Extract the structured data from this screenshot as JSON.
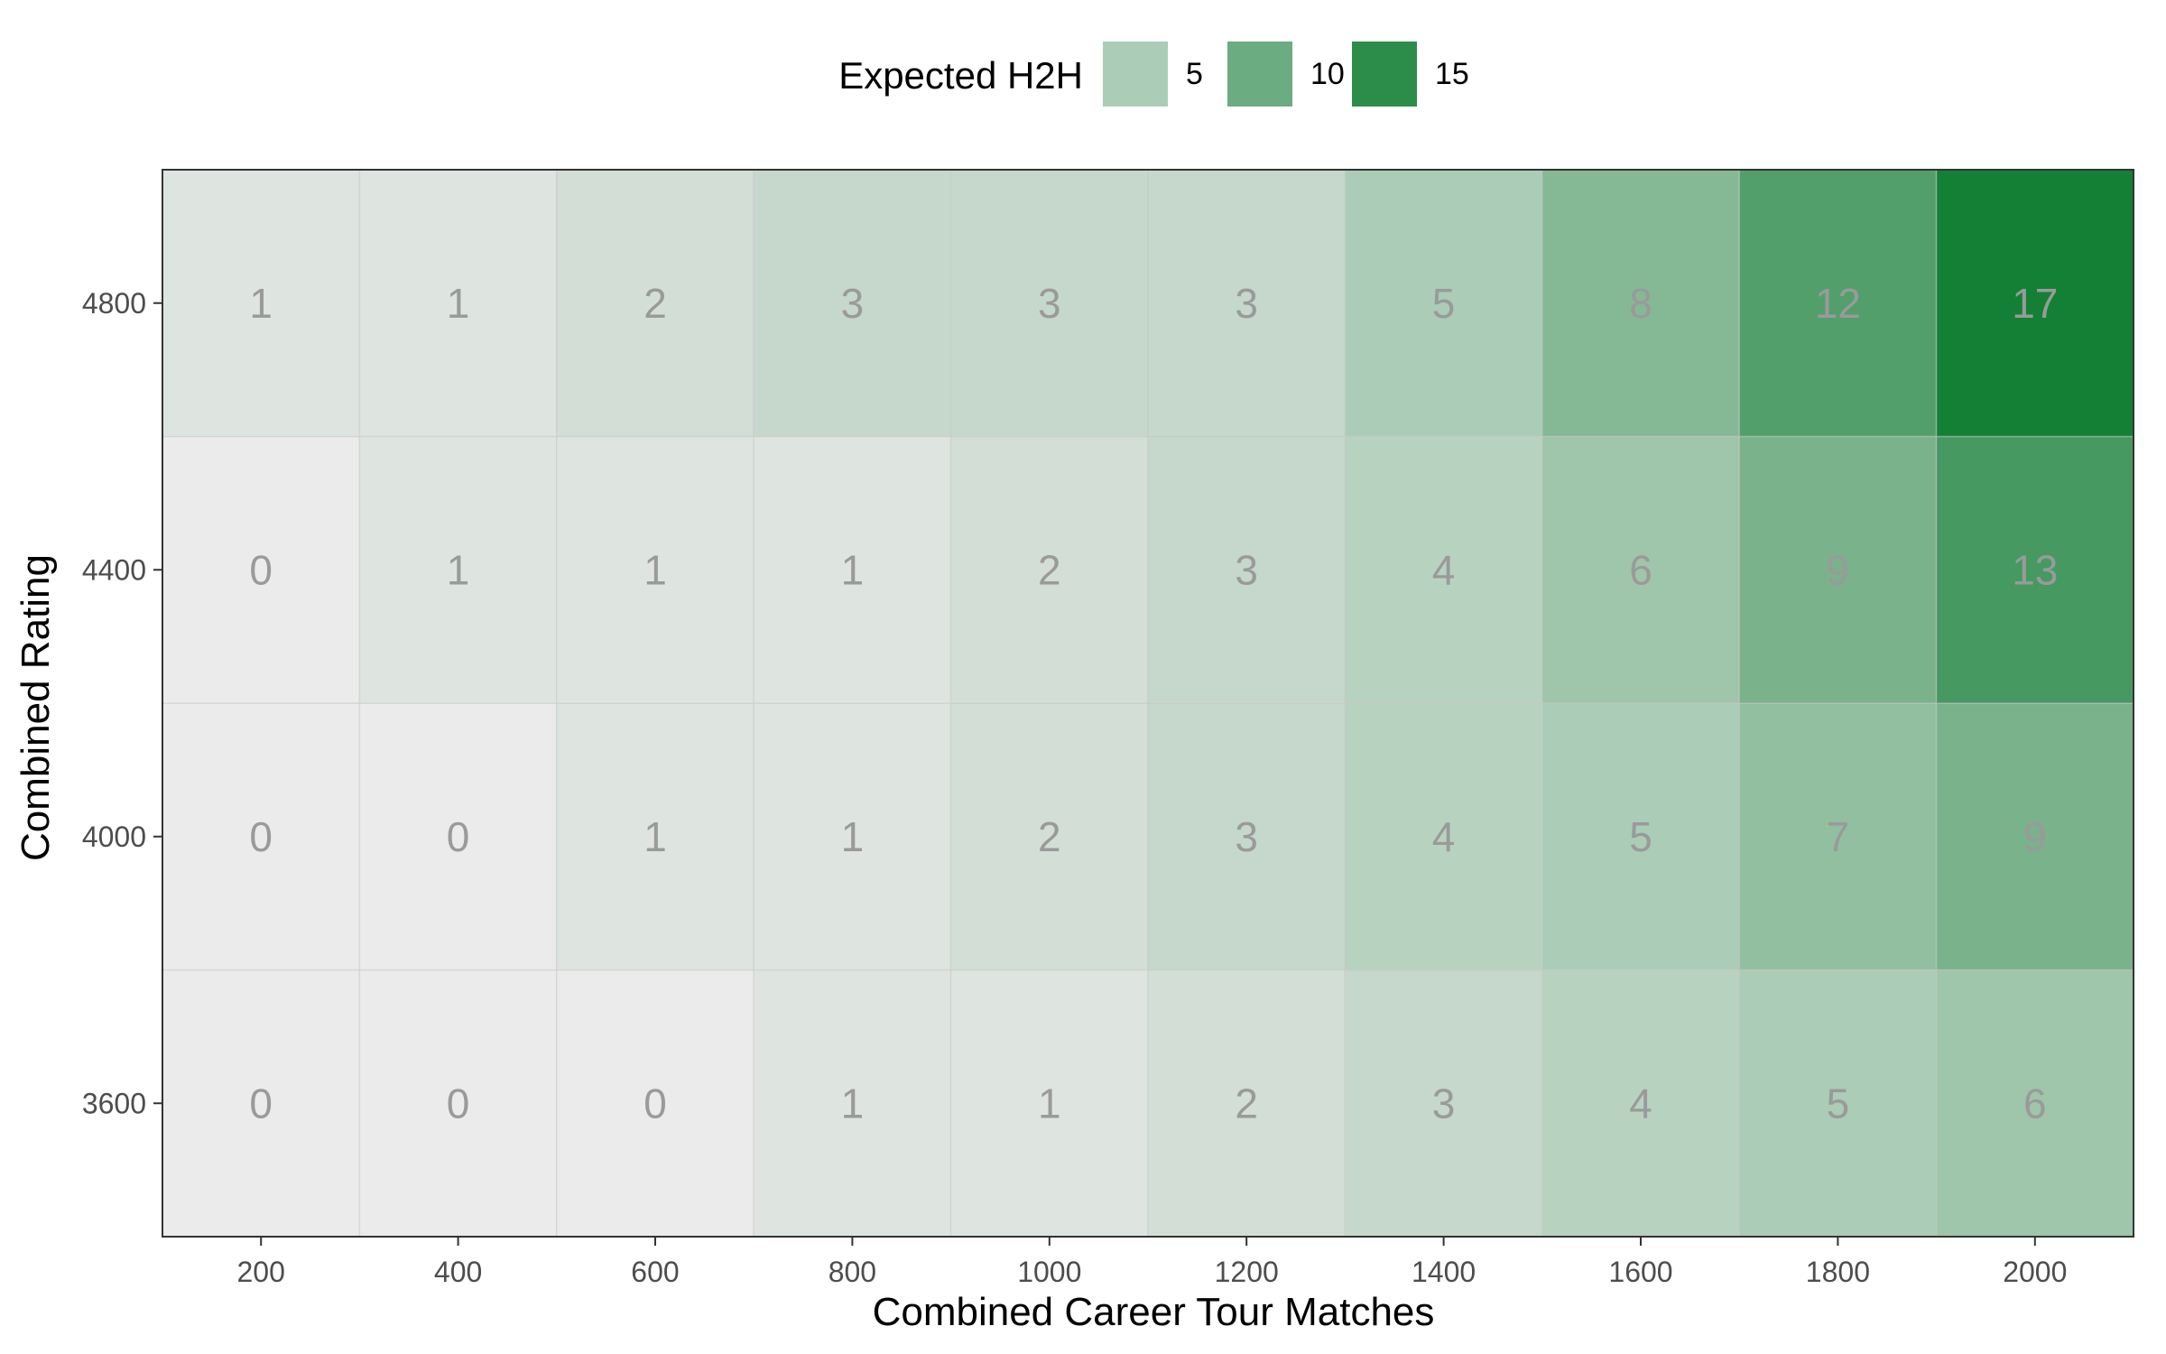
{
  "chart_data": {
    "type": "heatmap",
    "title": "",
    "xlabel": "Combined Career Tour Matches",
    "ylabel": "Combined Rating",
    "x": [
      200,
      400,
      600,
      800,
      1000,
      1200,
      1400,
      1600,
      1800,
      2000
    ],
    "y": [
      3600,
      4000,
      4400,
      4800
    ],
    "xlim": [
      100,
      2100
    ],
    "ylim": [
      3400,
      5000
    ],
    "values": [
      [
        0,
        0,
        0,
        1,
        1,
        2,
        3,
        4,
        5,
        6
      ],
      [
        0,
        0,
        1,
        1,
        2,
        3,
        4,
        5,
        7,
        9
      ],
      [
        0,
        1,
        1,
        1,
        2,
        3,
        4,
        6,
        9,
        13
      ],
      [
        1,
        1,
        2,
        3,
        3,
        3,
        5,
        8,
        12,
        17
      ]
    ],
    "legend": {
      "title": "Expected H2H",
      "placement": "top",
      "breaks": [
        5,
        10,
        15
      ]
    },
    "color_low": "#ebebeb",
    "color_high": "#138036",
    "grid": true
  }
}
